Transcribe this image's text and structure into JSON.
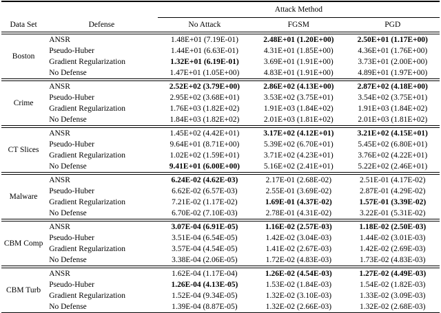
{
  "table": {
    "span_header": "Attack Method",
    "headers": {
      "data_set": "Data Set",
      "defense": "Defense",
      "no_attack": "No Attack",
      "fgsm": "FGSM",
      "pgd": "PGD"
    },
    "groups": [
      {
        "data_set": "Boston",
        "rows": [
          {
            "defense": "ANSR",
            "values": [
              {
                "text": "1.48E+01 (7.19E-01)",
                "bold": false
              },
              {
                "text": "2.48E+01 (1.20E+00)",
                "bold": true
              },
              {
                "text": "2.50E+01 (1.17E+00)",
                "bold": true
              }
            ]
          },
          {
            "defense": "Pseudo-Huber",
            "values": [
              {
                "text": "1.44E+01 (6.63E-01)",
                "bold": false
              },
              {
                "text": "4.31E+01 (1.85E+00)",
                "bold": false
              },
              {
                "text": "4.36E+01 (1.76E+00)",
                "bold": false
              }
            ]
          },
          {
            "defense": "Gradient Regularization",
            "values": [
              {
                "text": "1.32E+01 (6.19E-01)",
                "bold": true
              },
              {
                "text": "3.69E+01 (1.91E+00)",
                "bold": false
              },
              {
                "text": "3.73E+01 (2.00E+00)",
                "bold": false
              }
            ]
          },
          {
            "defense": "No Defense",
            "values": [
              {
                "text": "1.47E+01 (1.05E+00)",
                "bold": false
              },
              {
                "text": "4.83E+01 (1.91E+00)",
                "bold": false
              },
              {
                "text": "4.89E+01 (1.97E+00)",
                "bold": false
              }
            ]
          }
        ]
      },
      {
        "data_set": "Crime",
        "rows": [
          {
            "defense": "ANSR",
            "values": [
              {
                "text": "2.52E+02 (3.79E+00)",
                "bold": true
              },
              {
                "text": "2.86E+02 (4.13E+00)",
                "bold": true
              },
              {
                "text": "2.87E+02 (4.18E+00)",
                "bold": true
              }
            ]
          },
          {
            "defense": "Pseudo-Huber",
            "values": [
              {
                "text": "2.95E+02 (3.68E+01)",
                "bold": false
              },
              {
                "text": "3.53E+02 (3.75E+01)",
                "bold": false
              },
              {
                "text": "3.54E+02 (3.75E+01)",
                "bold": false
              }
            ]
          },
          {
            "defense": "Gradient Regularization",
            "values": [
              {
                "text": "1.76E+03 (1.82E+02)",
                "bold": false
              },
              {
                "text": "1.91E+03 (1.84E+02)",
                "bold": false
              },
              {
                "text": "1.91E+03 (1.84E+02)",
                "bold": false
              }
            ]
          },
          {
            "defense": "No Defense",
            "values": [
              {
                "text": "1.84E+03 (1.82E+02)",
                "bold": false
              },
              {
                "text": "2.01E+03 (1.81E+02)",
                "bold": false
              },
              {
                "text": "2.01E+03 (1.81E+02)",
                "bold": false
              }
            ]
          }
        ]
      },
      {
        "data_set": "CT Slices",
        "rows": [
          {
            "defense": "ANSR",
            "values": [
              {
                "text": "1.45E+02 (4.42E+01)",
                "bold": false
              },
              {
                "text": "3.17E+02 (4.12E+01)",
                "bold": true
              },
              {
                "text": "3.21E+02 (4.15E+01)",
                "bold": true
              }
            ]
          },
          {
            "defense": "Pseudo-Huber",
            "values": [
              {
                "text": "9.64E+01 (8.71E+00)",
                "bold": false
              },
              {
                "text": "5.39E+02 (6.70E+01)",
                "bold": false
              },
              {
                "text": "5.45E+02 (6.80E+01)",
                "bold": false
              }
            ]
          },
          {
            "defense": "Gradient Regularization",
            "values": [
              {
                "text": "1.02E+02 (1.59E+01)",
                "bold": false
              },
              {
                "text": "3.71E+02 (4.23E+01)",
                "bold": false
              },
              {
                "text": "3.76E+02 (4.22E+01)",
                "bold": false
              }
            ]
          },
          {
            "defense": "No Defense",
            "values": [
              {
                "text": "9.41E+01 (6.00E+00)",
                "bold": true
              },
              {
                "text": "5.16E+02 (2.41E+01)",
                "bold": false
              },
              {
                "text": "5.22E+02 (2.46E+01)",
                "bold": false
              }
            ]
          }
        ]
      },
      {
        "data_set": "Malware",
        "rows": [
          {
            "defense": "ANSR",
            "values": [
              {
                "text": "6.24E-02 (4.62E-03)",
                "bold": true
              },
              {
                "text": "2.17E-01 (2.68E-02)",
                "bold": false
              },
              {
                "text": "2.51E-01 (4.17E-02)",
                "bold": false
              }
            ]
          },
          {
            "defense": "Pseudo-Huber",
            "values": [
              {
                "text": "6.62E-02 (6.57E-03)",
                "bold": false
              },
              {
                "text": "2.55E-01 (3.69E-02)",
                "bold": false
              },
              {
                "text": "2.87E-01 (4.29E-02)",
                "bold": false
              }
            ]
          },
          {
            "defense": "Gradient Regularization",
            "values": [
              {
                "text": "7.21E-02 (1.17E-02)",
                "bold": false
              },
              {
                "text": "1.69E-01 (4.37E-02)",
                "bold": true
              },
              {
                "text": "1.57E-01 (3.39E-02)",
                "bold": true
              }
            ]
          },
          {
            "defense": "No Defense",
            "values": [
              {
                "text": "6.70E-02 (7.10E-03)",
                "bold": false
              },
              {
                "text": "2.78E-01 (4.31E-02)",
                "bold": false
              },
              {
                "text": "3.22E-01 (5.31E-02)",
                "bold": false
              }
            ]
          }
        ]
      },
      {
        "data_set": "CBM Comp",
        "rows": [
          {
            "defense": "ANSR",
            "values": [
              {
                "text": "3.07E-04 (6.91E-05)",
                "bold": true
              },
              {
                "text": "1.16E-02 (2.57E-03)",
                "bold": true
              },
              {
                "text": "1.18E-02 (2.50E-03)",
                "bold": true
              }
            ]
          },
          {
            "defense": "Pseudo-Huber",
            "values": [
              {
                "text": "3.51E-04 (6.54E-05)",
                "bold": false
              },
              {
                "text": "1.42E-02 (3.04E-03)",
                "bold": false
              },
              {
                "text": "1.44E-02 (3.01E-03)",
                "bold": false
              }
            ]
          },
          {
            "defense": "Gradient Regularization",
            "values": [
              {
                "text": "3.57E-04 (4.54E-05)",
                "bold": false
              },
              {
                "text": "1.41E-02 (2.67E-03)",
                "bold": false
              },
              {
                "text": "1.42E-02 (2.69E-03)",
                "bold": false
              }
            ]
          },
          {
            "defense": "No Defense",
            "values": [
              {
                "text": "3.38E-04 (2.06E-05)",
                "bold": false
              },
              {
                "text": "1.72E-02 (4.83E-03)",
                "bold": false
              },
              {
                "text": "1.73E-02 (4.83E-03)",
                "bold": false
              }
            ]
          }
        ]
      },
      {
        "data_set": "CBM Turb",
        "rows": [
          {
            "defense": "ANSR",
            "values": [
              {
                "text": "1.62E-04 (1.17E-04)",
                "bold": false
              },
              {
                "text": "1.26E-02 (4.54E-03)",
                "bold": true
              },
              {
                "text": "1.27E-02 (4.49E-03)",
                "bold": true
              }
            ]
          },
          {
            "defense": "Pseudo-Huber",
            "values": [
              {
                "text": "1.26E-04 (4.13E-05)",
                "bold": true
              },
              {
                "text": "1.53E-02 (1.84E-03)",
                "bold": false
              },
              {
                "text": "1.54E-02 (1.82E-03)",
                "bold": false
              }
            ]
          },
          {
            "defense": "Gradient Regularization",
            "values": [
              {
                "text": "1.52E-04 (9.34E-05)",
                "bold": false
              },
              {
                "text": "1.32E-02 (3.10E-03)",
                "bold": false
              },
              {
                "text": "1.33E-02 (3.09E-03)",
                "bold": false
              }
            ]
          },
          {
            "defense": "No Defense",
            "values": [
              {
                "text": "1.39E-04 (8.87E-05)",
                "bold": false
              },
              {
                "text": "1.32E-02 (2.66E-03)",
                "bold": false
              },
              {
                "text": "1.32E-02 (2.68E-03)",
                "bold": false
              }
            ]
          }
        ]
      }
    ]
  }
}
